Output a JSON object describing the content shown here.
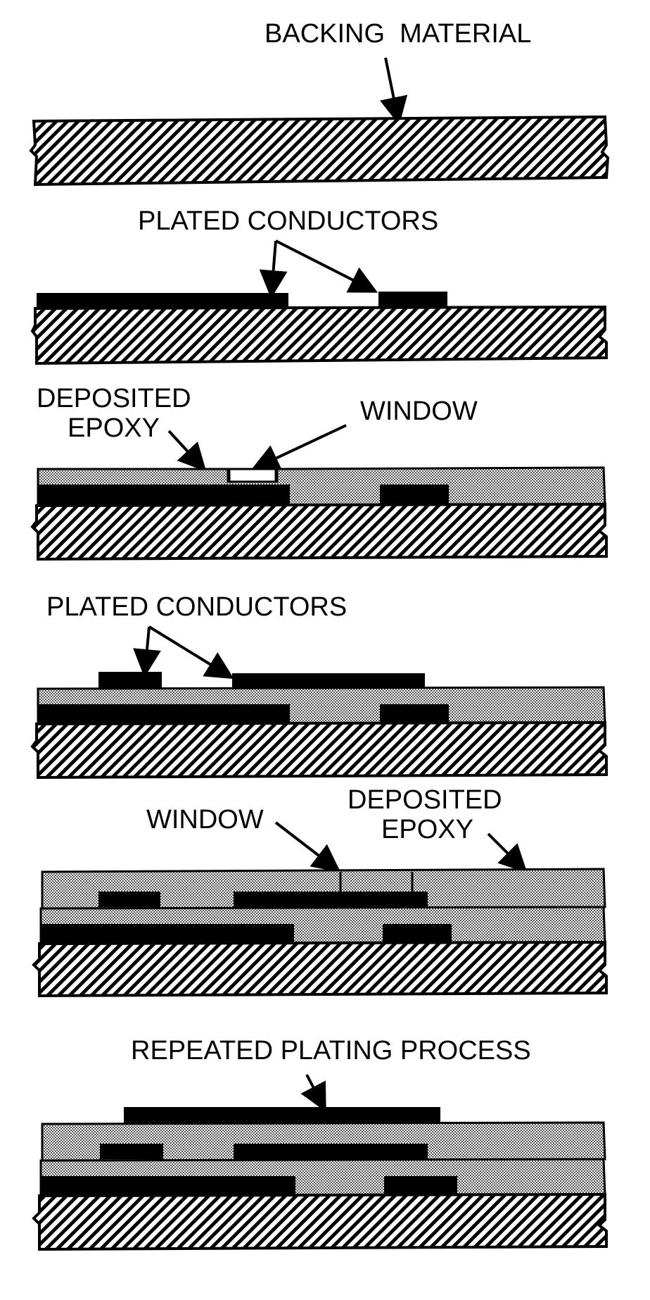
{
  "labels": {
    "backing_material": "BACKING  MATERIAL",
    "plated_conductors_1": "PLATED CONDUCTORS",
    "deposited_1_line1": "DEPOSITED",
    "deposited_1_line2": "EPOXY",
    "window_1": "WINDOW",
    "plated_conductors_2": "PLATED CONDUCTORS",
    "window_2": "WINDOW",
    "deposited_2_line1": "DEPOSITED",
    "deposited_2_line2": "EPOXY",
    "repeated_plating": "REPEATED PLATING PROCESS"
  },
  "colors": {
    "ink": "#000000",
    "epoxy_fill": "#c8c8c8",
    "paper": "#ffffff"
  }
}
